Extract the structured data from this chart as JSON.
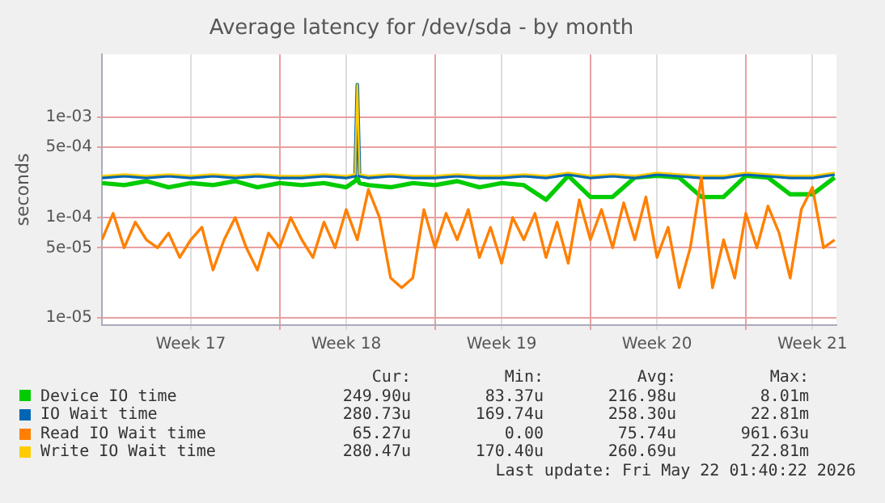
{
  "chart_data": {
    "type": "line",
    "title": "Average latency for /dev/sda - by month",
    "ylabel": "seconds",
    "log": "y",
    "grid": true,
    "legend": "bottom",
    "marker": "none",
    "line_style": "solid",
    "xlim": [
      "2026-04-19T00:00",
      "2026-05-22T02:00"
    ],
    "xticks": [
      {
        "value": "2026-04-23",
        "label": "Week 17"
      },
      {
        "value": "2026-04-27",
        "label": null
      },
      {
        "value": "2026-04-30",
        "label": "Week 18"
      },
      {
        "value": "2026-05-04",
        "label": null
      },
      {
        "value": "2026-05-07",
        "label": "Week 19"
      },
      {
        "value": "2026-05-11",
        "label": null
      },
      {
        "value": "2026-05-14",
        "label": "Week 20"
      },
      {
        "value": "2026-05-18",
        "label": null
      },
      {
        "value": "2026-05-21",
        "label": "Week 21"
      }
    ],
    "ylim": [
      8.5e-06,
      0.0042
    ],
    "yticks": [
      {
        "value": 1e-05,
        "label": "1e-05"
      },
      {
        "value": 5e-05,
        "label": "5e-05"
      },
      {
        "value": 0.0001,
        "label": "1e-04"
      },
      {
        "value": 0.0005,
        "label": "5e-04"
      },
      {
        "value": 0.001,
        "label": "1e-03"
      }
    ],
    "x": [
      "2026-04-19",
      "2026-04-20",
      "2026-04-21",
      "2026-04-22",
      "2026-04-23",
      "2026-04-24",
      "2026-04-25",
      "2026-04-26",
      "2026-04-27",
      "2026-04-28",
      "2026-04-29",
      "2026-04-30",
      "2026-04-30T09:36",
      "2026-04-30T12:00",
      "2026-04-30T14:24",
      "2026-05-01",
      "2026-05-02",
      "2026-05-03",
      "2026-05-04",
      "2026-05-05",
      "2026-05-06",
      "2026-05-07",
      "2026-05-08",
      "2026-05-09",
      "2026-05-10",
      "2026-05-11",
      "2026-05-12",
      "2026-05-13",
      "2026-05-14",
      "2026-05-15",
      "2026-05-16",
      "2026-05-17",
      "2026-05-18",
      "2026-05-19",
      "2026-05-20",
      "2026-05-21",
      "2026-05-22"
    ],
    "series": [
      {
        "name": "Device IO time",
        "color": "#00cc00",
        "values": [
          0.00022,
          0.00021,
          0.00023,
          0.0002,
          0.00022,
          0.00021,
          0.00023,
          0.0002,
          0.00022,
          0.00021,
          0.00022,
          0.0002,
          0.00023,
          0.00025,
          0.00022,
          0.00021,
          0.0002,
          0.00022,
          0.00021,
          0.00023,
          0.0002,
          0.00022,
          0.00021,
          0.00015,
          0.00026,
          0.00016,
          0.00016,
          0.00025,
          0.00026,
          0.00025,
          0.00016,
          0.00016,
          0.00026,
          0.00025,
          0.00017,
          0.00017,
          0.00025
        ]
      },
      {
        "name": "IO Wait time",
        "color": "#0066b3",
        "values": [
          0.00025,
          0.00026,
          0.00025,
          0.00026,
          0.00025,
          0.00026,
          0.00025,
          0.00026,
          0.00025,
          0.00025,
          0.00026,
          0.00025,
          0.00026,
          0.0021,
          0.00026,
          0.00025,
          0.00026,
          0.00025,
          0.00025,
          0.00026,
          0.00025,
          0.00025,
          0.00026,
          0.00025,
          0.00027,
          0.00025,
          0.00026,
          0.00025,
          0.00027,
          0.00026,
          0.00025,
          0.00025,
          0.00027,
          0.00026,
          0.00025,
          0.00025,
          0.00027
        ]
      },
      {
        "name": "Read IO Wait time",
        "color": "#ff8000",
        "x": [
          "2026-04-19",
          "2026-04-19T12:00",
          "2026-04-20",
          "2026-04-20T12:00",
          "2026-04-21",
          "2026-04-21T12:00",
          "2026-04-22",
          "2026-04-22T12:00",
          "2026-04-23",
          "2026-04-23T12:00",
          "2026-04-24",
          "2026-04-24T12:00",
          "2026-04-25",
          "2026-04-25T12:00",
          "2026-04-26",
          "2026-04-26T12:00",
          "2026-04-27",
          "2026-04-27T12:00",
          "2026-04-28",
          "2026-04-28T12:00",
          "2026-04-29",
          "2026-04-29T12:00",
          "2026-04-30",
          "2026-04-30T12:00",
          "2026-05-01",
          "2026-05-01T12:00",
          "2026-05-02",
          "2026-05-02T12:00",
          "2026-05-03",
          "2026-05-03T12:00",
          "2026-05-04",
          "2026-05-04T12:00",
          "2026-05-05",
          "2026-05-05T12:00",
          "2026-05-06",
          "2026-05-06T12:00",
          "2026-05-07",
          "2026-05-07T12:00",
          "2026-05-08",
          "2026-05-08T12:00",
          "2026-05-09",
          "2026-05-09T12:00",
          "2026-05-10",
          "2026-05-10T12:00",
          "2026-05-11",
          "2026-05-11T12:00",
          "2026-05-12",
          "2026-05-12T12:00",
          "2026-05-13",
          "2026-05-13T12:00",
          "2026-05-14",
          "2026-05-14T12:00",
          "2026-05-15",
          "2026-05-15T12:00",
          "2026-05-16",
          "2026-05-16T12:00",
          "2026-05-17",
          "2026-05-17T12:00",
          "2026-05-18",
          "2026-05-18T12:00",
          "2026-05-19",
          "2026-05-19T12:00",
          "2026-05-20",
          "2026-05-20T12:00",
          "2026-05-21",
          "2026-05-21T12:00",
          "2026-05-22"
        ],
        "values": [
          6e-05,
          0.00011,
          5e-05,
          9e-05,
          6e-05,
          5e-05,
          7e-05,
          4e-05,
          6e-05,
          8e-05,
          3e-05,
          6e-05,
          0.0001,
          5e-05,
          3e-05,
          7e-05,
          5e-05,
          0.0001,
          6e-05,
          4e-05,
          9e-05,
          5e-05,
          0.00012,
          6e-05,
          0.00019,
          0.0001,
          2.5e-05,
          2e-05,
          2.5e-05,
          0.00012,
          5e-05,
          0.00011,
          6e-05,
          0.00012,
          4e-05,
          8e-05,
          3.5e-05,
          0.0001,
          6e-05,
          0.00011,
          4e-05,
          9e-05,
          3.5e-05,
          0.00015,
          6e-05,
          0.00012,
          5e-05,
          0.00014,
          6e-05,
          0.00016,
          4e-05,
          8e-05,
          2e-05,
          5e-05,
          0.00025,
          2e-05,
          6e-05,
          2.5e-05,
          0.00011,
          5e-05,
          0.00013,
          7e-05,
          2.5e-05,
          0.00012,
          0.0002,
          5e-05,
          6e-05
        ]
      },
      {
        "name": "Write IO Wait time",
        "color": "#ffcc00",
        "values": [
          0.00026,
          0.00027,
          0.00026,
          0.00027,
          0.00026,
          0.00027,
          0.00026,
          0.00027,
          0.00026,
          0.00026,
          0.00027,
          0.00026,
          0.00027,
          0.0021,
          0.00027,
          0.00026,
          0.00027,
          0.00026,
          0.00026,
          0.00027,
          0.00026,
          0.00026,
          0.00027,
          0.00026,
          0.00028,
          0.00026,
          0.00027,
          0.00026,
          0.00028,
          0.00027,
          0.00026,
          0.00026,
          0.00028,
          0.00027,
          0.00026,
          0.00026,
          0.00028
        ]
      }
    ],
    "annotations": [
      "Cur:",
      "Min:",
      "Avg:",
      "Max:",
      "249.90u",
      "83.37u",
      "216.98u",
      "8.01m",
      "280.73u",
      "169.74u",
      "258.30u",
      "22.81m",
      "65.27u",
      "0.00",
      "75.74u",
      "961.63u",
      "280.47u",
      "170.40u",
      "260.69u",
      "22.81m",
      "Last update: Fri May 22 01:40:22 2026"
    ]
  }
}
